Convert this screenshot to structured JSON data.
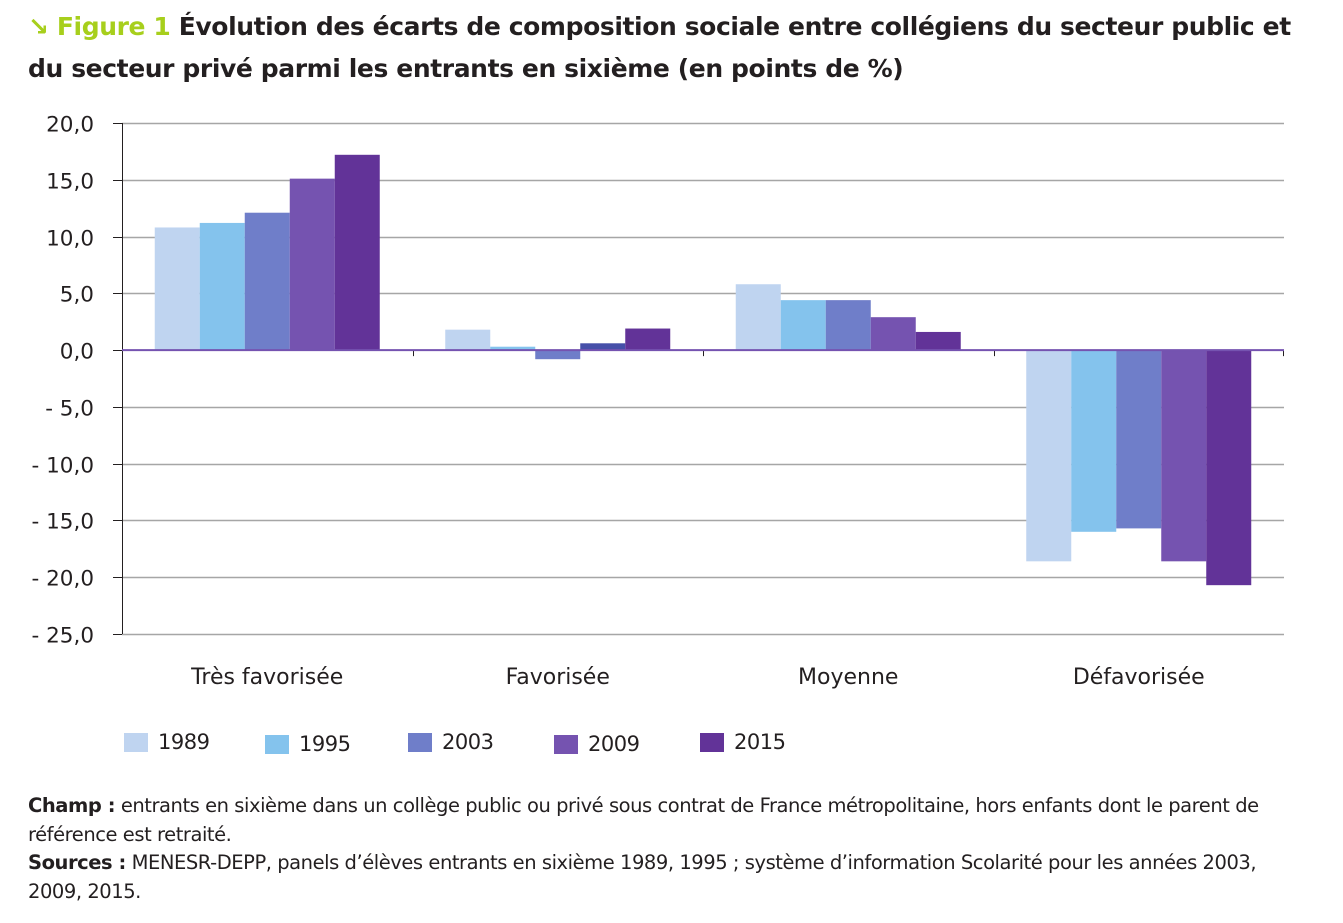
{
  "header": {
    "arrow_icon": "↘",
    "figure_label": "Figure 1",
    "title": "Évolution des écarts de composition sociale entre collégiens du secteur public et du secteur privé parmi les entrants en sixième (en points de %)"
  },
  "chart_data": {
    "type": "bar",
    "title": "Évolution des écarts de composition sociale entre collégiens du secteur public et du secteur privé parmi les entrants en sixième (en points de %)",
    "xlabel": "",
    "ylabel": "",
    "categories": [
      "Très favorisée",
      "Favorisée",
      "Moyenne",
      "Défavorisée"
    ],
    "ylim": [
      -25,
      20
    ],
    "yticks": [
      20,
      15,
      10,
      5,
      0,
      -5,
      -10,
      -15,
      -20,
      -25
    ],
    "ytick_labels": [
      "20,0",
      "15,0",
      "10,0",
      "5,0",
      "0,0",
      "- 5,0",
      "- 10,0",
      "- 15,0",
      "- 20,0",
      "- 25,0"
    ],
    "grid": true,
    "legend_position": "bottom",
    "series": [
      {
        "name": "1989",
        "color": "#bfd4f0",
        "values": [
          10.8,
          1.8,
          5.8,
          -18.6
        ]
      },
      {
        "name": "1995",
        "color": "#84c3ed",
        "values": [
          11.2,
          0.3,
          4.4,
          -16.0
        ]
      },
      {
        "name": "2003",
        "color": "#6f7ec9",
        "values": [
          12.1,
          -0.8,
          4.4,
          -15.7
        ]
      },
      {
        "name": "2009",
        "color": "#7553b0",
        "values": [
          15.1,
          0.6,
          2.9,
          -18.6
        ],
        "point_colors": [
          null,
          "#4650a9",
          null,
          null
        ]
      },
      {
        "name": "2015",
        "color": "#623398",
        "values": [
          17.2,
          1.9,
          1.6,
          -20.7
        ]
      }
    ],
    "colors": {
      "gridline": "#a6a6a6",
      "zero_line": "#7553b0",
      "axis": "#231f20"
    }
  },
  "legend": {
    "items": [
      {
        "label": "1989",
        "color": "#bfd4f0"
      },
      {
        "label": "1995",
        "color": "#84c3ed"
      },
      {
        "label": "2003",
        "color": "#6f7ec9"
      },
      {
        "label": "2009",
        "color": "#7553b0"
      },
      {
        "label": "2015",
        "color": "#623398"
      }
    ]
  },
  "notes": {
    "champ_label": "Champ :",
    "champ_text": " entrants en sixième dans un collège public ou privé sous contrat de France métropolitaine, hors enfants dont le parent de référence est retraité.",
    "sources_label": "Sources :",
    "sources_text": " MENESR-DEPP, panels d’élèves entrants en sixième 1989, 1995 ; système d’information Scolarité pour les années 2003, 2009, 2015."
  }
}
